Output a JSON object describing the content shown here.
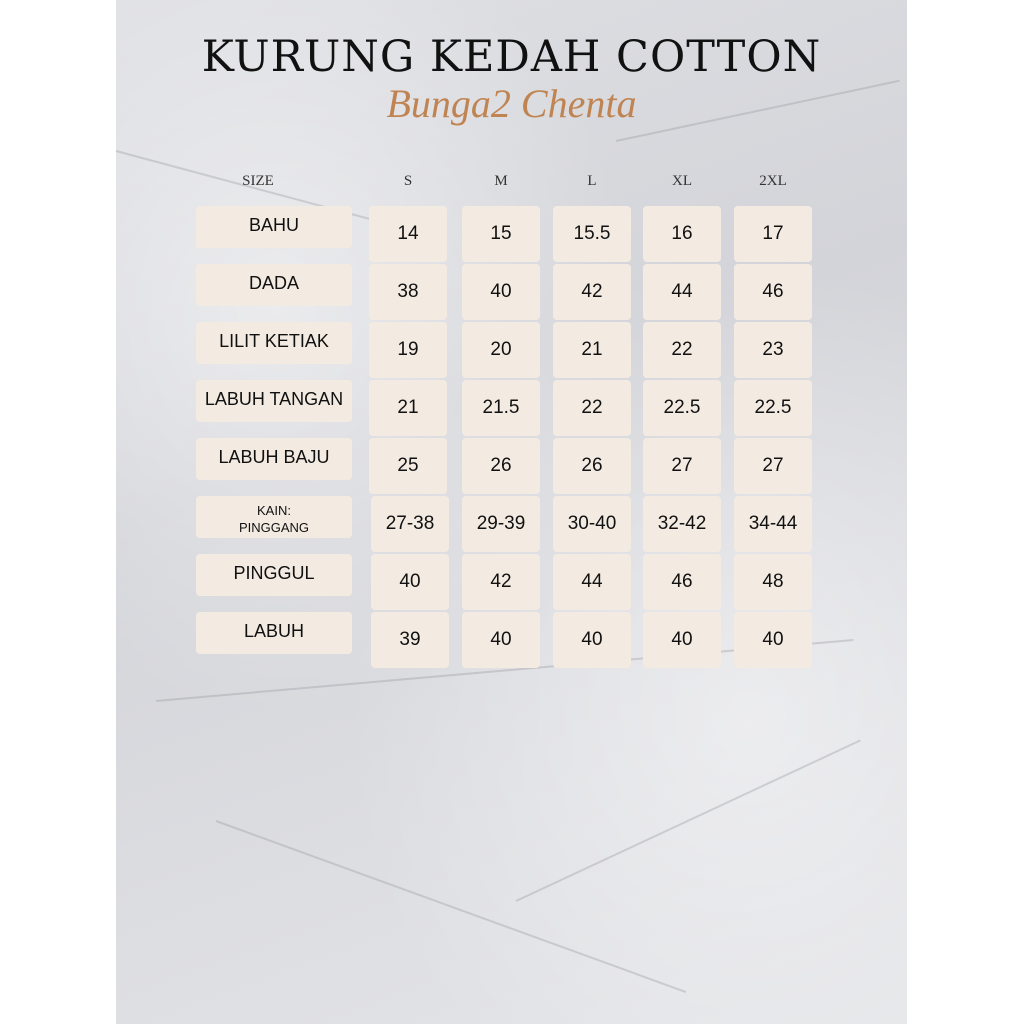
{
  "title": "KURUNG KEDAH COTTON",
  "subtitle": "Bunga2 Chenta",
  "header": {
    "size_label": "SIZE",
    "sizes": [
      "S",
      "M",
      "L",
      "XL",
      "2XL"
    ]
  },
  "rows": [
    {
      "label": "BAHU",
      "values": [
        "14",
        "15",
        "15.5",
        "16",
        "17"
      ]
    },
    {
      "label": "DADA",
      "values": [
        "38",
        "40",
        "42",
        "44",
        "46"
      ]
    },
    {
      "label": "LILIT KETIAK",
      "values": [
        "19",
        "20",
        "21",
        "22",
        "23"
      ]
    },
    {
      "label": "LABUH TANGAN",
      "values": [
        "21",
        "21.5",
        "22",
        "22.5",
        "22.5"
      ]
    },
    {
      "label": "LABUH BAJU",
      "values": [
        "25",
        "26",
        "26",
        "27",
        "27"
      ]
    },
    {
      "label": "KAIN:\nPINGGANG",
      "values": [
        "27-38",
        "29-39",
        "30-40",
        "32-42",
        "34-44"
      ]
    },
    {
      "label": "PINGGUL",
      "values": [
        "40",
        "42",
        "44",
        "46",
        "48"
      ]
    },
    {
      "label": "LABUH",
      "values": [
        "39",
        "40",
        "40",
        "40",
        "40"
      ]
    }
  ],
  "colors": {
    "subtitle": "#c08452",
    "cell_background": "#f3ebe2",
    "background": "#d8d9dd"
  }
}
